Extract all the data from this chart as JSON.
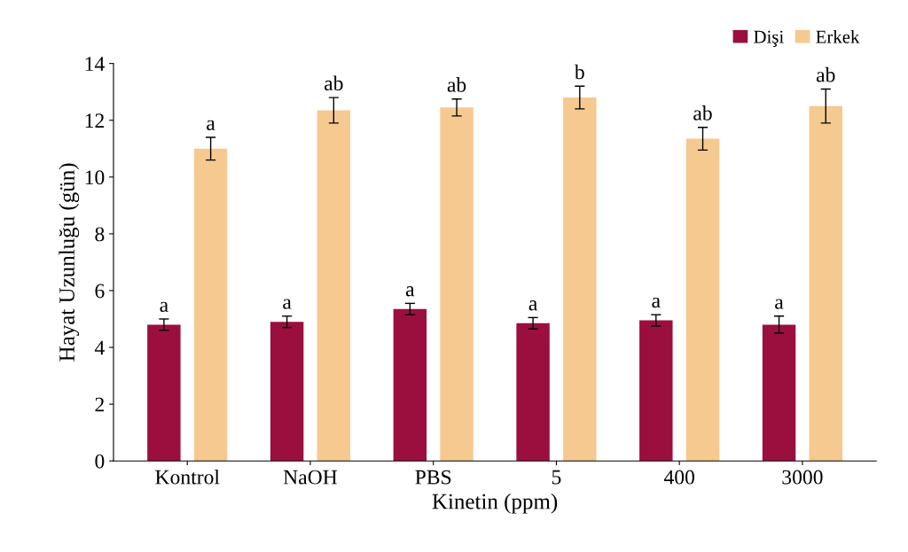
{
  "chart_data": {
    "type": "bar",
    "xlabel": "Kinetin (ppm)",
    "ylabel": "Hayat Uzunluğu (gün)",
    "categories": [
      "Kontrol",
      "NaOH",
      "PBS",
      "5",
      "400",
      "3000"
    ],
    "series": [
      {
        "name": "Dişi",
        "color": "#9b0f3f",
        "values": [
          4.8,
          4.9,
          5.35,
          4.85,
          4.95,
          4.8
        ],
        "errors": [
          0.2,
          0.2,
          0.2,
          0.2,
          0.2,
          0.3
        ],
        "value_labels": [
          "a",
          "a",
          "a",
          "a",
          "a",
          "a"
        ]
      },
      {
        "name": "Erkek",
        "color": "#f5c990",
        "values": [
          11.0,
          12.35,
          12.45,
          12.8,
          11.35,
          12.5
        ],
        "errors": [
          0.4,
          0.45,
          0.3,
          0.4,
          0.4,
          0.6
        ],
        "value_labels": [
          "a",
          "ab",
          "ab",
          "b",
          "ab",
          "ab"
        ]
      }
    ],
    "ylim": [
      0,
      14
    ],
    "yticks": [
      0,
      2,
      4,
      6,
      8,
      10,
      12,
      14
    ],
    "grid": false,
    "legend": "top right"
  }
}
